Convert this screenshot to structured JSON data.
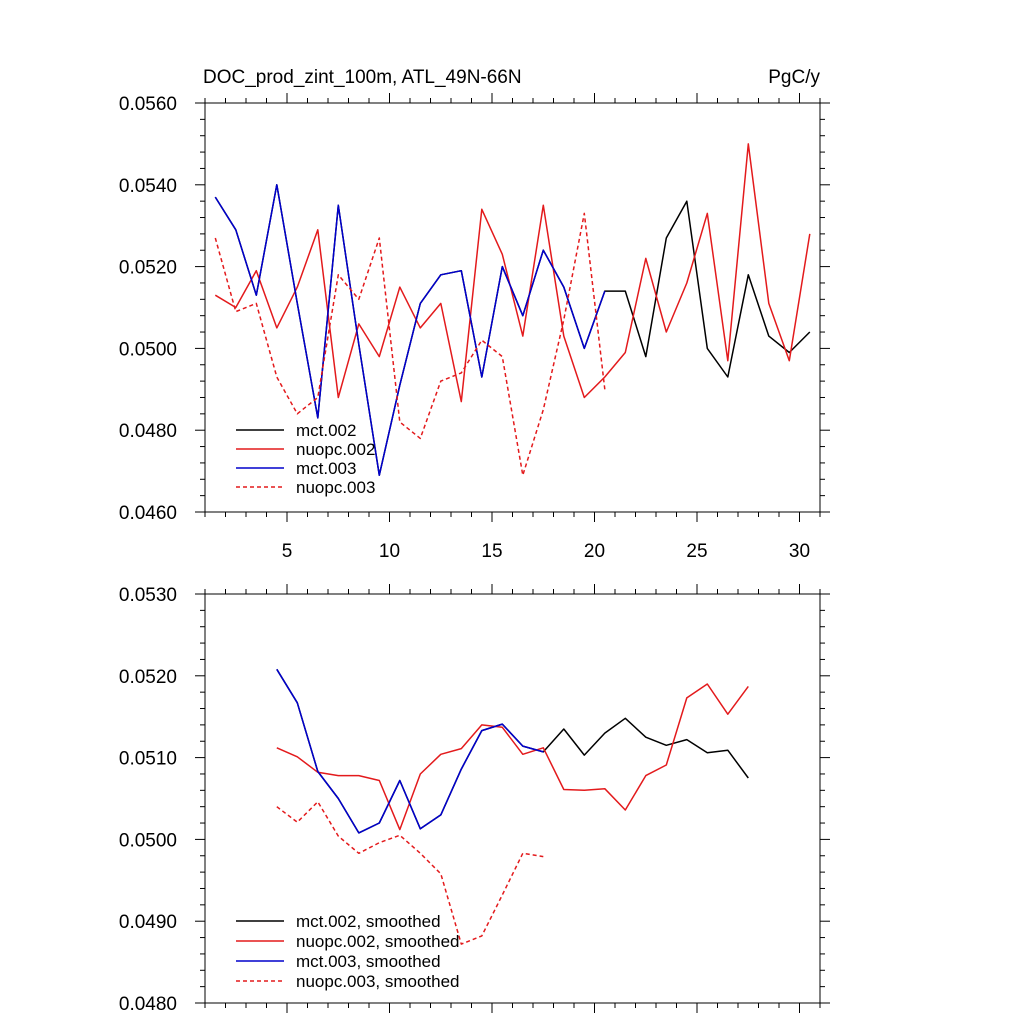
{
  "chart_data": [
    {
      "type": "line",
      "title": "DOC_prod_zint_100m, ATL_49N-66N",
      "units": "PgC/y",
      "xlim": [
        1,
        31
      ],
      "ylim": [
        0.046,
        0.056
      ],
      "x_ticks": [
        5,
        10,
        15,
        20,
        25,
        30
      ],
      "y_ticks": [
        "0.0460",
        "0.0480",
        "0.0500",
        "0.0520",
        "0.0540",
        "0.0560"
      ],
      "legend_position": "bottom-left",
      "series": [
        {
          "name": "mct.002",
          "color": "#000000",
          "dash": "solid",
          "x": [
            1.5,
            2.5,
            3.5,
            4.5,
            5.5,
            6.5,
            7.5,
            8.5,
            9.5,
            10.5,
            11.5,
            12.5,
            13.5,
            14.5,
            15.5,
            16.5,
            17.5,
            18.5,
            19.5,
            20.5,
            21.5,
            22.5,
            23.5,
            24.5,
            25.5,
            26.5,
            27.5,
            28.5,
            29.5,
            30.5
          ],
          "values": [
            0.0537,
            0.0529,
            0.0513,
            0.054,
            0.0511,
            0.0483,
            0.0535,
            0.0501,
            0.0469,
            0.0491,
            0.0511,
            0.0518,
            0.0519,
            0.0493,
            0.052,
            0.0508,
            0.0524,
            0.0515,
            0.05,
            0.0514,
            0.0514,
            0.0498,
            0.0527,
            0.0536,
            0.05,
            0.0493,
            0.0518,
            0.0503,
            0.0499,
            0.0504
          ]
        },
        {
          "name": "nuopc.002",
          "color": "#e31a1c",
          "dash": "solid",
          "x": [
            1.5,
            2.5,
            3.5,
            4.5,
            5.5,
            6.5,
            7.5,
            8.5,
            9.5,
            10.5,
            11.5,
            12.5,
            13.5,
            14.5,
            15.5,
            16.5,
            17.5,
            18.5,
            19.5,
            20.5,
            21.5,
            22.5,
            23.5,
            24.5,
            25.5,
            26.5,
            27.5,
            28.5,
            29.5,
            30.5
          ],
          "values": [
            0.0513,
            0.051,
            0.0519,
            0.0505,
            0.0515,
            0.0529,
            0.0488,
            0.0506,
            0.0498,
            0.0515,
            0.0505,
            0.0511,
            0.0487,
            0.0534,
            0.0523,
            0.0503,
            0.0535,
            0.0503,
            0.0488,
            0.0493,
            0.0499,
            0.0522,
            0.0504,
            0.0516,
            0.0533,
            0.0497,
            0.055,
            0.0511,
            0.0497,
            0.0528
          ]
        },
        {
          "name": "mct.003",
          "color": "#0000cc",
          "dash": "solid",
          "x": [
            1.5,
            2.5,
            3.5,
            4.5,
            5.5,
            6.5,
            7.5,
            8.5,
            9.5,
            10.5,
            11.5,
            12.5,
            13.5,
            14.5,
            15.5,
            16.5,
            17.5,
            18.5,
            19.5,
            20.5
          ],
          "values": [
            0.0537,
            0.0529,
            0.0513,
            0.054,
            0.0511,
            0.0483,
            0.0535,
            0.0501,
            0.0469,
            0.0491,
            0.0511,
            0.0518,
            0.0519,
            0.0493,
            0.052,
            0.0508,
            0.0524,
            0.0515,
            0.05,
            0.0514
          ]
        },
        {
          "name": "nuopc.003",
          "color": "#e31a1c",
          "dash": "dashed",
          "x": [
            1.5,
            2.5,
            3.5,
            4.5,
            5.5,
            6.5,
            7.5,
            8.5,
            9.5,
            10.5,
            11.5,
            12.5,
            13.5,
            14.5,
            15.5,
            16.5,
            17.5,
            18.5,
            19.5,
            20.5
          ],
          "values": [
            0.0527,
            0.0509,
            0.0511,
            0.0493,
            0.0484,
            0.0488,
            0.0518,
            0.0512,
            0.0527,
            0.0482,
            0.0478,
            0.0492,
            0.0494,
            0.0502,
            0.0498,
            0.0469,
            0.0485,
            0.0507,
            0.0533,
            0.049
          ]
        }
      ]
    },
    {
      "type": "line",
      "title": "",
      "xlim": [
        1,
        31
      ],
      "ylim": [
        0.048,
        0.053
      ],
      "y_ticks": [
        "0.0480",
        "0.0490",
        "0.0500",
        "0.0510",
        "0.0520",
        "0.0530"
      ],
      "legend_position": "bottom-left",
      "series": [
        {
          "name": "mct.002, smoothed",
          "color": "#000000",
          "dash": "solid",
          "x": [
            4.5,
            5.5,
            6.5,
            7.5,
            8.5,
            9.5,
            10.5,
            11.5,
            12.5,
            13.5,
            14.5,
            15.5,
            16.5,
            17.5,
            18.5,
            19.5,
            20.5,
            21.5,
            22.5,
            23.5,
            24.5,
            25.5,
            26.5,
            27.5
          ],
          "values": [
            0.05208,
            0.05167,
            0.05083,
            0.0505,
            0.05008,
            0.0502,
            0.05072,
            0.05013,
            0.0503,
            0.05086,
            0.05133,
            0.05141,
            0.05114,
            0.05107,
            0.05135,
            0.05103,
            0.0513,
            0.05148,
            0.05125,
            0.05115,
            0.05122,
            0.05106,
            0.05109,
            0.05075
          ]
        },
        {
          "name": "nuopc.002, smoothed",
          "color": "#e31a1c",
          "dash": "solid",
          "x": [
            4.5,
            5.5,
            6.5,
            7.5,
            8.5,
            9.5,
            10.5,
            11.5,
            12.5,
            13.5,
            14.5,
            15.5,
            16.5,
            17.5,
            18.5,
            19.5,
            20.5,
            21.5,
            22.5,
            23.5,
            24.5,
            25.5,
            26.5,
            27.5
          ],
          "values": [
            0.05112,
            0.05101,
            0.05082,
            0.05078,
            0.05078,
            0.05072,
            0.05012,
            0.0508,
            0.05104,
            0.05111,
            0.0514,
            0.05137,
            0.05104,
            0.05112,
            0.05061,
            0.0506,
            0.05062,
            0.05036,
            0.05078,
            0.05091,
            0.05173,
            0.0519,
            0.05153,
            0.05187
          ]
        },
        {
          "name": "mct.003, smoothed",
          "color": "#0000cc",
          "dash": "solid",
          "x": [
            4.5,
            5.5,
            6.5,
            7.5,
            8.5,
            9.5,
            10.5,
            11.5,
            12.5,
            13.5,
            14.5,
            15.5,
            16.5,
            17.5
          ],
          "values": [
            0.05208,
            0.05167,
            0.05083,
            0.0505,
            0.05008,
            0.0502,
            0.05072,
            0.05013,
            0.0503,
            0.05086,
            0.05133,
            0.05141,
            0.05114,
            0.05107
          ]
        },
        {
          "name": "nuopc.003, smoothed",
          "color": "#e31a1c",
          "dash": "dashed",
          "x": [
            4.5,
            5.5,
            6.5,
            7.5,
            8.5,
            9.5,
            10.5,
            11.5,
            12.5,
            13.5,
            14.5,
            15.5,
            16.5,
            17.5
          ],
          "values": [
            0.0504,
            0.05021,
            0.05046,
            0.05004,
            0.04983,
            0.04996,
            0.05005,
            0.04983,
            0.04958,
            0.04872,
            0.04882,
            0.04932,
            0.04983,
            0.04979
          ]
        }
      ]
    }
  ]
}
